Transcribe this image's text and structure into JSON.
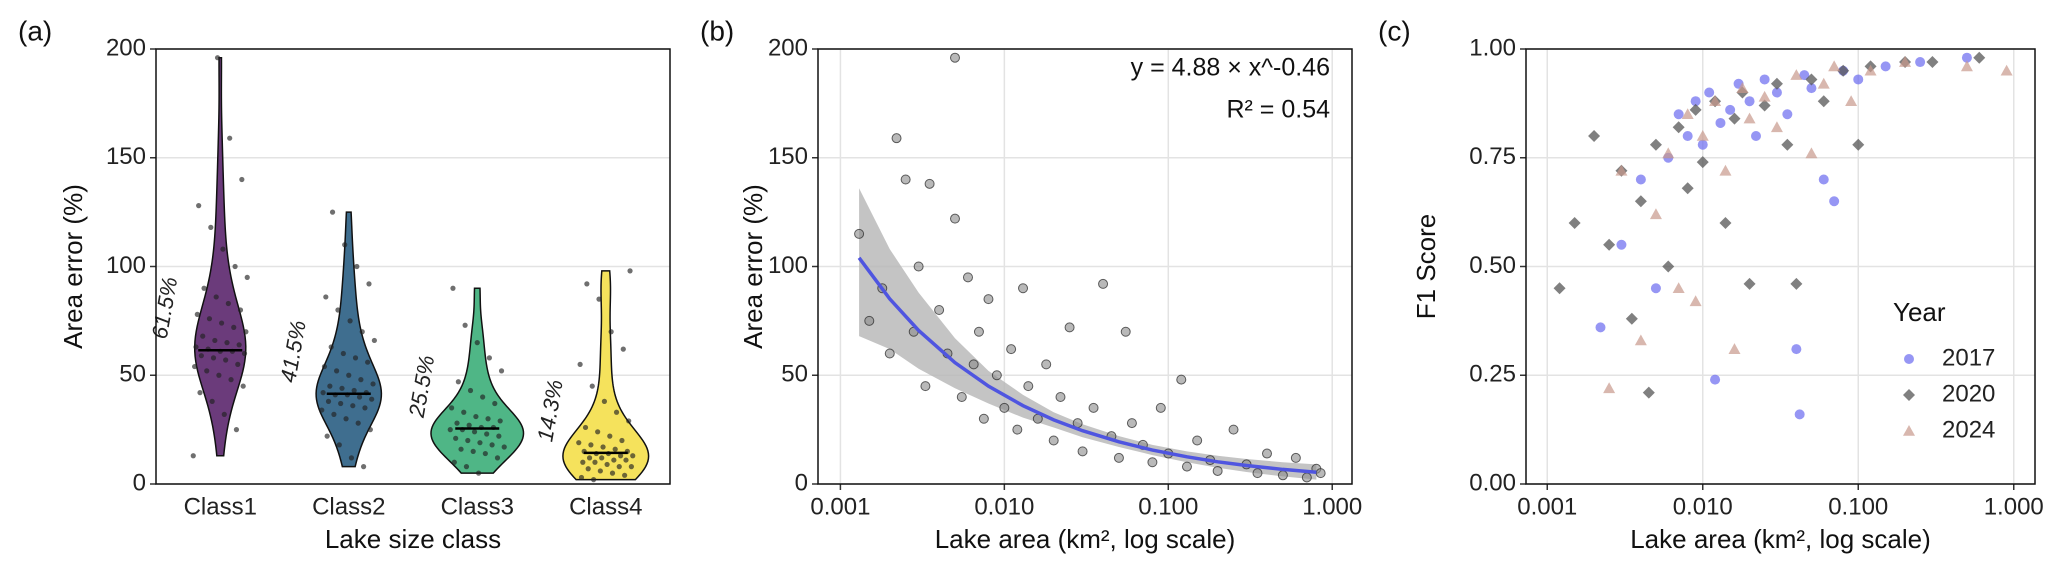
{
  "chart_data": [
    {
      "type": "violin",
      "panel_label": "(a)",
      "x_label": "Lake size class",
      "y_label": "Area error (%)",
      "categories": [
        "Class1",
        "Class2",
        "Class3",
        "Class4"
      ],
      "colors": [
        "#6b3b7b",
        "#3f6e8f",
        "#4fb686",
        "#f5e25c"
      ],
      "values": [
        61.5,
        41.5,
        25.5,
        14.3
      ],
      "value_labels": [
        "61.5%",
        "41.5%",
        "25.5%",
        "14.3%"
      ],
      "points": [
        [
          13,
          25,
          32,
          38,
          42,
          45,
          48,
          50,
          52,
          54,
          55,
          57,
          58,
          59,
          60,
          61,
          61,
          62,
          63,
          64,
          65,
          66,
          68,
          70,
          72,
          74,
          76,
          78,
          80,
          83,
          86,
          90,
          95,
          100,
          108,
          118,
          128,
          140,
          159,
          196
        ],
        [
          8,
          12,
          18,
          22,
          25,
          28,
          30,
          32,
          34,
          35,
          36,
          37,
          38,
          39,
          40,
          41,
          41,
          42,
          42,
          43,
          44,
          45,
          46,
          48,
          50,
          52,
          54,
          56,
          58,
          60,
          63,
          66,
          70,
          75,
          80,
          86,
          92,
          100,
          110,
          125
        ],
        [
          5,
          8,
          10,
          12,
          14,
          15,
          16,
          17,
          18,
          19,
          20,
          21,
          22,
          23,
          24,
          25,
          25,
          26,
          26,
          27,
          28,
          29,
          30,
          31,
          33,
          35,
          37,
          40,
          43,
          47,
          52,
          58,
          65,
          73,
          90
        ],
        [
          2,
          3,
          4,
          5,
          6,
          7,
          8,
          8,
          9,
          10,
          10,
          11,
          11,
          12,
          12,
          13,
          13,
          14,
          14,
          15,
          15,
          16,
          17,
          18,
          19,
          20,
          22,
          24,
          26,
          29,
          33,
          38,
          45,
          55,
          62,
          70,
          85,
          92,
          98
        ]
      ],
      "ylim": [
        0,
        200
      ],
      "yticks": [
        0,
        50,
        100,
        150,
        200
      ],
      "grid": true
    },
    {
      "type": "scatter",
      "panel_label": "(b)",
      "x_label": "Lake area (km², log scale)",
      "y_label": "Area error (%)",
      "xscale": "log",
      "xlim": [
        0.00073,
        1.32
      ],
      "xticks": [
        0.001,
        {
          "value": 0.01,
          "label": "0.010"
        },
        {
          "value": 0.1,
          "label": "0.100"
        },
        {
          "value": 1,
          "label": "1.000"
        }
      ],
      "ylim": [
        0,
        200
      ],
      "yticks": [
        0,
        50,
        100,
        150,
        200
      ],
      "grid": true,
      "point_color": "#8a8a8a",
      "points": {
        "x": [
          0.0013,
          0.0015,
          0.0018,
          0.002,
          0.0022,
          0.0025,
          0.0028,
          0.003,
          0.0033,
          0.0035,
          0.004,
          0.0045,
          0.005,
          0.005,
          0.0055,
          0.006,
          0.0065,
          0.007,
          0.0075,
          0.008,
          0.009,
          0.01,
          0.011,
          0.012,
          0.013,
          0.014,
          0.016,
          0.018,
          0.02,
          0.022,
          0.025,
          0.028,
          0.03,
          0.035,
          0.04,
          0.045,
          0.05,
          0.055,
          0.06,
          0.07,
          0.08,
          0.09,
          0.1,
          0.12,
          0.13,
          0.15,
          0.18,
          0.2,
          0.25,
          0.3,
          0.35,
          0.4,
          0.5,
          0.6,
          0.7,
          0.8,
          0.85
        ],
        "y": [
          115,
          75,
          90,
          60,
          159,
          140,
          70,
          100,
          45,
          138,
          80,
          60,
          196,
          122,
          40,
          95,
          55,
          70,
          30,
          85,
          50,
          35,
          62,
          25,
          90,
          45,
          30,
          55,
          20,
          40,
          72,
          28,
          15,
          35,
          92,
          22,
          12,
          70,
          28,
          18,
          10,
          35,
          14,
          48,
          8,
          20,
          11,
          6,
          25,
          9,
          5,
          14,
          4,
          12,
          3,
          7,
          5
        ]
      },
      "fit": {
        "color": "#4f55e0",
        "band_color": "#b5b5b5",
        "x": [
          0.0013,
          0.002,
          0.003,
          0.005,
          0.008,
          0.013,
          0.02,
          0.03,
          0.05,
          0.08,
          0.13,
          0.2,
          0.3,
          0.5,
          0.8
        ],
        "y": [
          104,
          85.1,
          70.6,
          55.8,
          45.0,
          36.0,
          29.5,
          24.5,
          19.4,
          15.6,
          12.5,
          10.2,
          8.5,
          6.7,
          5.4
        ],
        "lower": [
          68,
          62,
          53,
          44,
          37,
          30.5,
          26,
          21.5,
          17,
          13.3,
          10,
          7.5,
          5.5,
          3.5,
          2
        ],
        "upper": [
          136,
          108,
          88,
          67,
          52,
          41,
          33,
          27.5,
          22,
          18,
          15,
          13,
          11.5,
          10,
          9
        ]
      },
      "annotations": [
        "y = 4.88 × x^-0.46",
        "R² = 0.54"
      ]
    },
    {
      "type": "scatter-multi",
      "panel_label": "(c)",
      "x_label": "Lake area (km², log scale)",
      "y_label": "F1 Score",
      "xscale": "log",
      "xlim": [
        0.00073,
        1.37
      ],
      "xticks": [
        0.001,
        {
          "value": 0.01,
          "label": "0.010"
        },
        {
          "value": 0.1,
          "label": "0.100"
        },
        {
          "value": 1,
          "label": "1.000"
        }
      ],
      "ylim": [
        0,
        1
      ],
      "yticks": [
        {
          "value": 0,
          "label": "0.00"
        },
        0.25,
        {
          "value": 0.5,
          "label": "0.50"
        },
        0.75,
        {
          "value": 1,
          "label": "1.00"
        }
      ],
      "grid": true,
      "legend_title": "Year",
      "legend": "bottom-right",
      "series": [
        {
          "name": "2017",
          "color": "#6a6af0",
          "marker": "circle",
          "x": [
            0.0022,
            0.003,
            0.004,
            0.005,
            0.006,
            0.007,
            0.008,
            0.009,
            0.01,
            0.011,
            0.012,
            0.013,
            0.015,
            0.017,
            0.02,
            0.022,
            0.025,
            0.03,
            0.035,
            0.04,
            0.042,
            0.045,
            0.05,
            0.06,
            0.07,
            0.08,
            0.1,
            0.15,
            0.25,
            0.5
          ],
          "y": [
            0.36,
            0.55,
            0.7,
            0.45,
            0.75,
            0.85,
            0.8,
            0.88,
            0.78,
            0.9,
            0.24,
            0.83,
            0.86,
            0.92,
            0.88,
            0.8,
            0.93,
            0.9,
            0.85,
            0.31,
            0.16,
            0.94,
            0.91,
            0.7,
            0.65,
            0.95,
            0.93,
            0.96,
            0.97,
            0.98
          ]
        },
        {
          "name": "2020",
          "color": "#555555",
          "marker": "diamond",
          "x": [
            0.0012,
            0.0015,
            0.002,
            0.0025,
            0.003,
            0.0035,
            0.004,
            0.0045,
            0.005,
            0.006,
            0.007,
            0.008,
            0.009,
            0.01,
            0.012,
            0.014,
            0.016,
            0.018,
            0.02,
            0.025,
            0.03,
            0.035,
            0.04,
            0.05,
            0.06,
            0.08,
            0.1,
            0.12,
            0.2,
            0.3,
            0.6
          ],
          "y": [
            0.45,
            0.6,
            0.8,
            0.55,
            0.72,
            0.38,
            0.65,
            0.21,
            0.78,
            0.5,
            0.82,
            0.68,
            0.86,
            0.74,
            0.88,
            0.6,
            0.84,
            0.9,
            0.46,
            0.87,
            0.92,
            0.78,
            0.46,
            0.93,
            0.88,
            0.95,
            0.78,
            0.96,
            0.97,
            0.97,
            0.98
          ]
        },
        {
          "name": "2024",
          "color": "#c8998c",
          "marker": "triangle",
          "x": [
            0.0025,
            0.003,
            0.004,
            0.005,
            0.006,
            0.007,
            0.008,
            0.009,
            0.01,
            0.012,
            0.014,
            0.016,
            0.018,
            0.02,
            0.025,
            0.03,
            0.04,
            0.05,
            0.06,
            0.07,
            0.09,
            0.12,
            0.2,
            0.5,
            0.9
          ],
          "y": [
            0.22,
            0.72,
            0.33,
            0.62,
            0.76,
            0.45,
            0.85,
            0.42,
            0.8,
            0.88,
            0.72,
            0.31,
            0.91,
            0.84,
            0.89,
            0.82,
            0.94,
            0.76,
            0.92,
            0.96,
            0.88,
            0.95,
            0.97,
            0.96,
            0.95
          ]
        }
      ]
    }
  ]
}
